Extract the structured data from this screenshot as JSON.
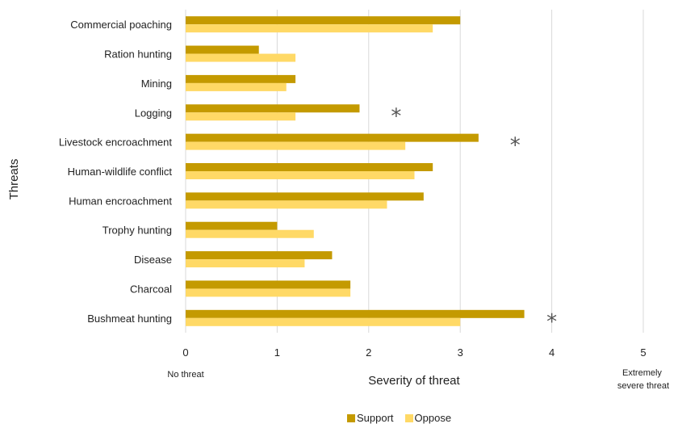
{
  "chart_data": {
    "type": "bar",
    "orientation": "horizontal",
    "categories": [
      "Commercial poaching",
      "Ration hunting",
      "Mining",
      "Logging",
      "Livestock encroachment",
      "Human-wildlife conflict",
      "Human encroachment",
      "Trophy hunting",
      "Disease",
      "Charcoal",
      "Bushmeat hunting"
    ],
    "series": [
      {
        "name": "Support",
        "color": "#C49A00",
        "values": [
          3.0,
          0.8,
          1.2,
          1.9,
          3.2,
          2.7,
          2.6,
          1.0,
          1.6,
          1.8,
          3.7
        ]
      },
      {
        "name": "Oppose",
        "color": "#FFD966",
        "values": [
          2.7,
          1.2,
          1.1,
          1.2,
          2.4,
          2.5,
          2.2,
          1.4,
          1.3,
          1.8,
          3.0
        ]
      }
    ],
    "xlabel": "Severity of threat",
    "ylabel": "Threats",
    "xlim": [
      0,
      5
    ],
    "xticks": [
      0,
      1,
      2,
      3,
      4,
      5
    ],
    "x_end_labels": {
      "min": "No threat",
      "max": "Extremely severe threat"
    },
    "grid": true,
    "legend_position": "bottom",
    "significance_marker": "*",
    "significant_categories": [
      "Logging",
      "Livestock encroachment",
      "Bushmeat hunting"
    ]
  }
}
